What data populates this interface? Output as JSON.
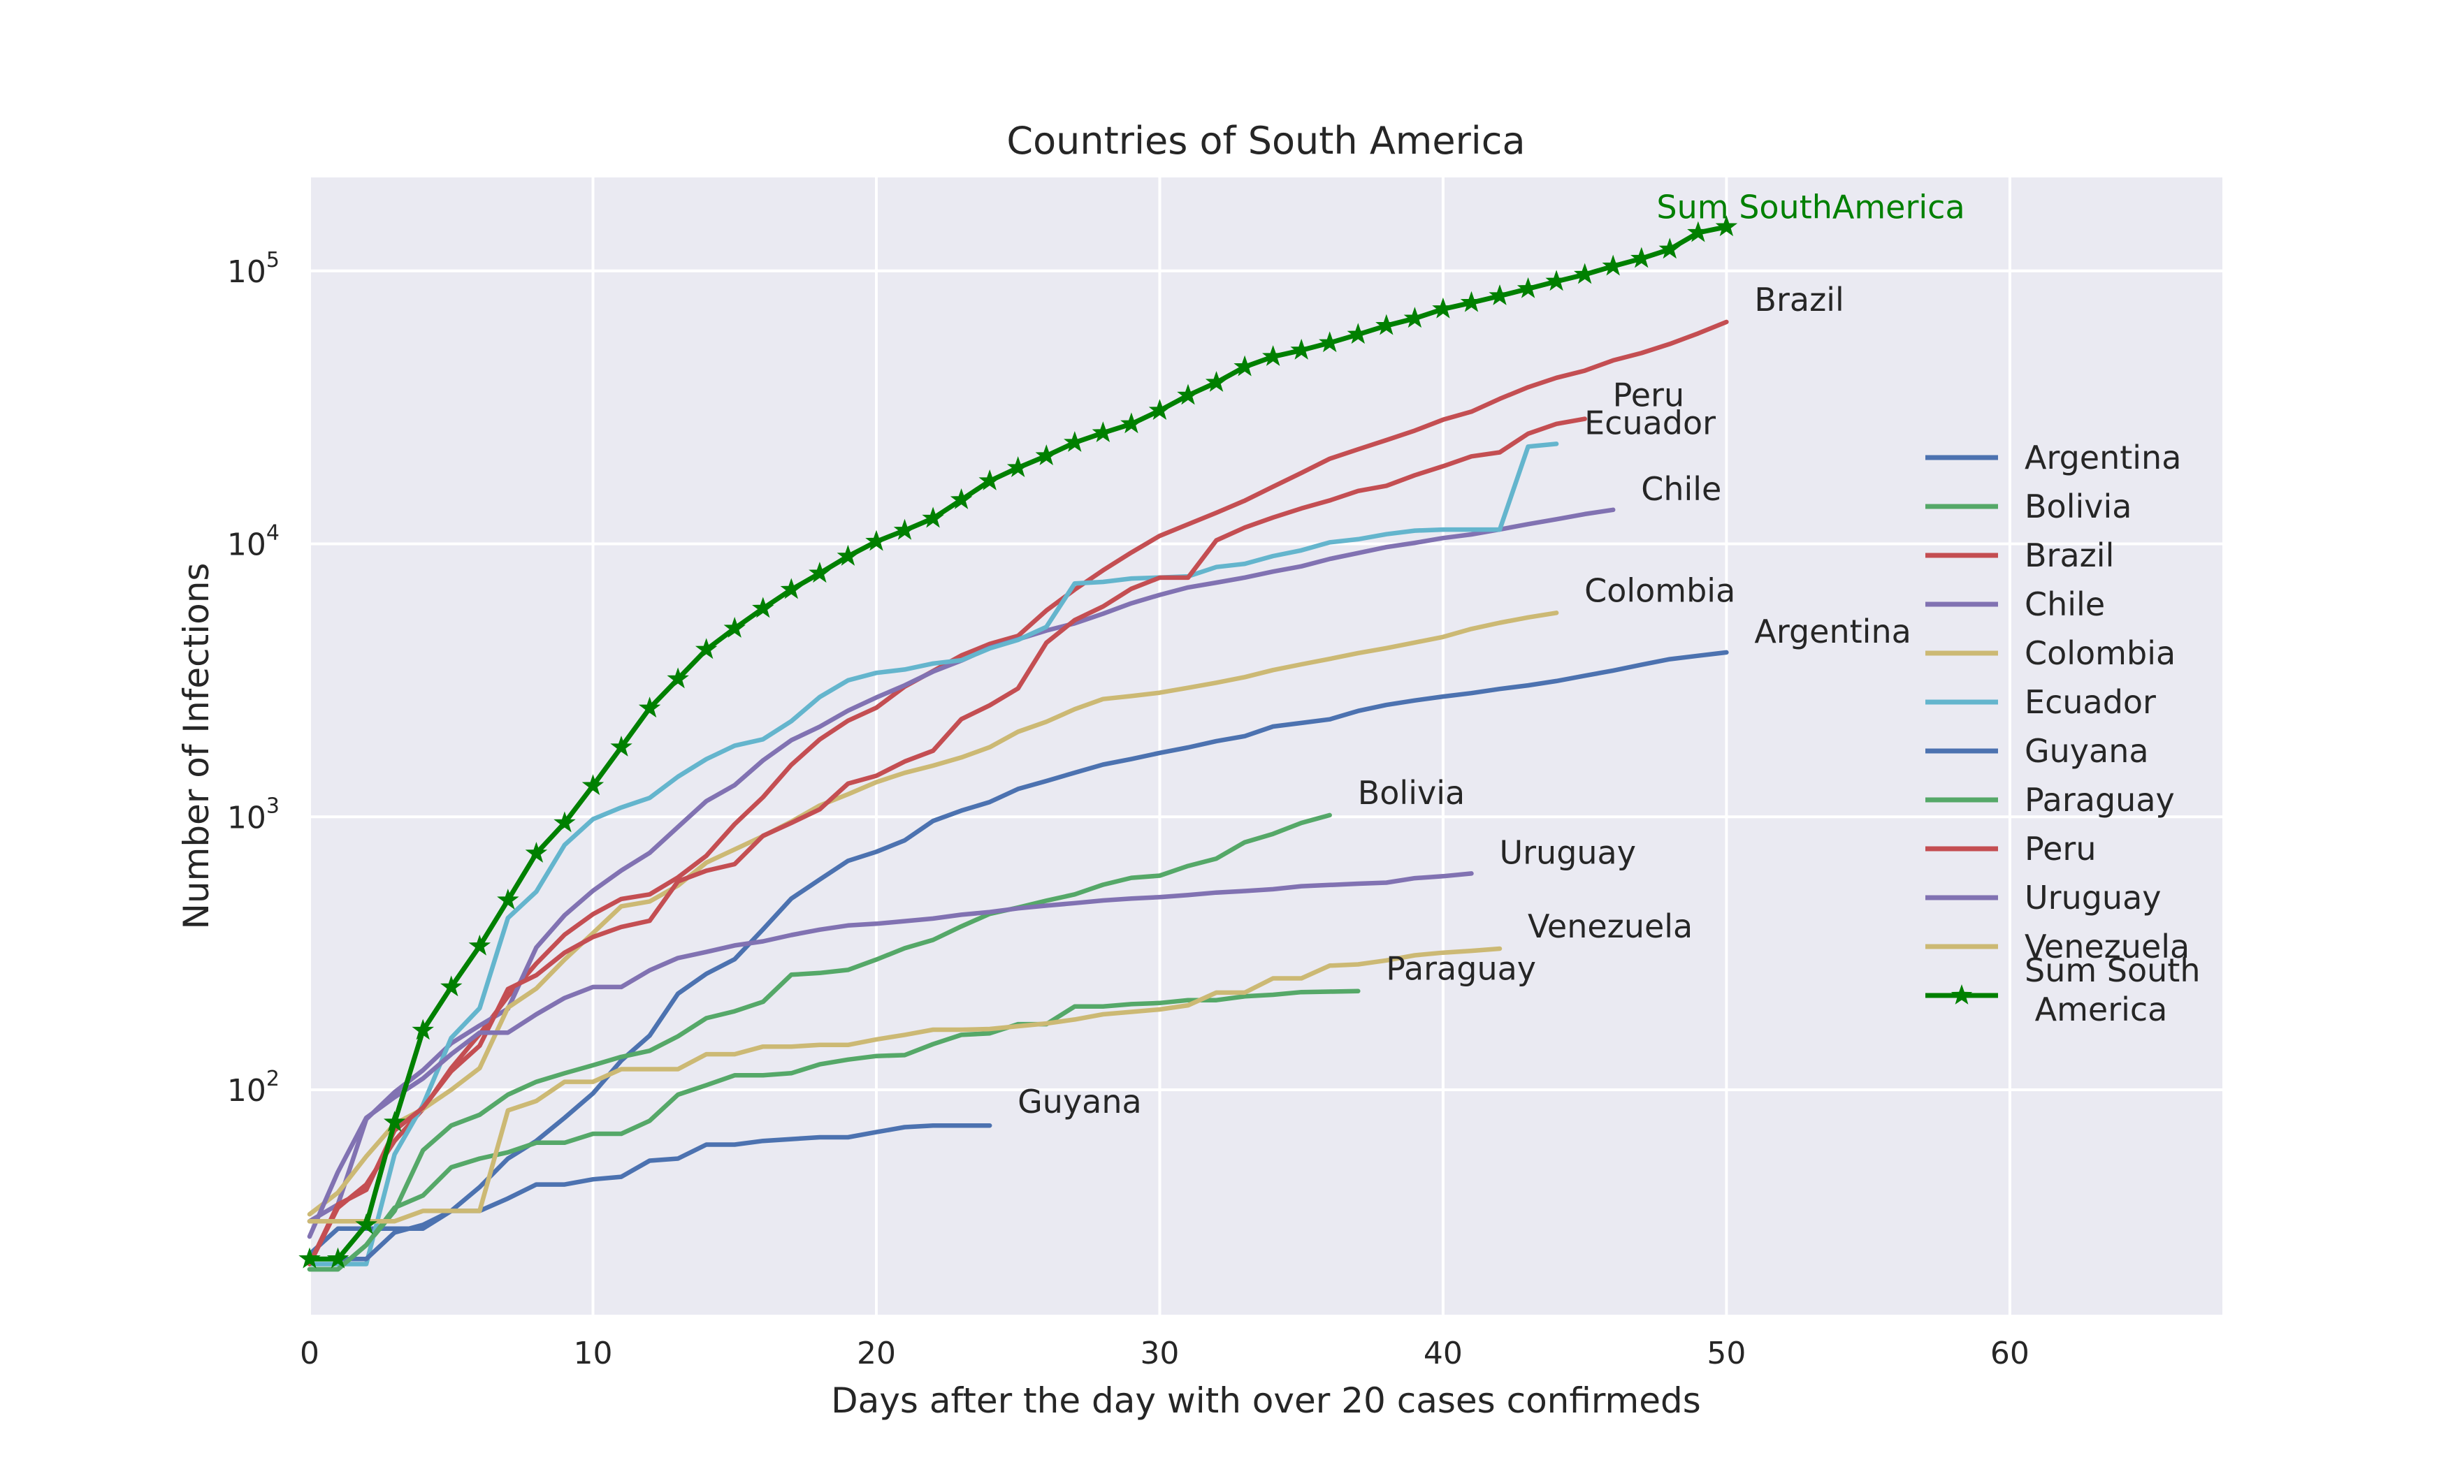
{
  "chart_data": {
    "type": "line",
    "title": "Countries of South America",
    "xlabel": "Days after the day with over 20 cases confirmeds",
    "ylabel": "Number of Infections",
    "yscale": "log",
    "xlim": [
      0,
      67.5
    ],
    "ylim": [
      15,
      220000
    ],
    "x_ticks": [
      0,
      10,
      20,
      30,
      40,
      50,
      60
    ],
    "x_tick_labels": [
      "0",
      "10",
      "20",
      "30",
      "40",
      "50",
      "60"
    ],
    "y_ticks": [
      100,
      1000,
      10000,
      100000
    ],
    "y_tick_labels": [
      {
        "base": "10",
        "exp": "2"
      },
      {
        "base": "10",
        "exp": "3"
      },
      {
        "base": "10",
        "exp": "4"
      },
      {
        "base": "10",
        "exp": "5"
      }
    ],
    "grid": true,
    "background": "#EAEAF2",
    "legend_position": "right",
    "series": [
      {
        "name": "Argentina",
        "color": "#4C72B0",
        "end_label": "Argentina",
        "values": [
          25,
          31,
          31,
          31,
          31,
          36,
          44,
          56,
          65,
          79,
          97,
          128,
          158,
          225,
          266,
          301,
          387,
          502,
          589,
          690,
          745,
          820,
          966,
          1054,
          1133,
          1265,
          1353,
          1451,
          1554,
          1628,
          1715,
          1795,
          1894,
          1975,
          2142,
          2208,
          2277,
          2443,
          2571,
          2669,
          2758,
          2839,
          2941,
          3031,
          3144,
          3288,
          3435,
          3607,
          3780,
          3892,
          4003
        ]
      },
      {
        "name": "Bolivia",
        "color": "#55A868",
        "end_label": "Bolivia",
        "values": [
          22,
          22,
          27,
          36,
          60,
          74,
          81,
          96,
          107,
          115,
          123,
          132,
          139,
          157,
          183,
          194,
          210,
          264,
          268,
          275,
          300,
          330,
          354,
          397,
          441,
          465,
          493,
          520,
          564,
          598,
          609,
          661,
          703,
          807,
          866,
          950,
          1014
        ]
      },
      {
        "name": "Brazil",
        "color": "#C44E52",
        "end_label": "Brazil",
        "values": [
          23,
          37,
          45,
          65,
          85,
          120,
          160,
          220,
          290,
          370,
          440,
          500,
          520,
          600,
          720,
          940,
          1180,
          1550,
          1920,
          2250,
          2510,
          3000,
          3420,
          3900,
          4300,
          4600,
          5700,
          6800,
          8000,
          9300,
          10700,
          11800,
          13000,
          14400,
          16200,
          18200,
          20500,
          22200,
          24000,
          26000,
          28500,
          30500,
          34000,
          37500,
          40600,
          43100,
          47000,
          50000,
          54000,
          59000,
          65000
        ]
      },
      {
        "name": "Chile",
        "color": "#8172B2",
        "end_label": "Chile",
        "values": [
          33,
          38,
          78,
          98,
          118,
          148,
          172,
          198,
          332,
          436,
          536,
          636,
          738,
          918,
          1142,
          1307,
          1610,
          1909,
          2139,
          2449,
          2738,
          3031,
          3404,
          3737,
          4161,
          4471,
          4815,
          5116,
          5546,
          6060,
          6501,
          6927,
          7213,
          7525,
          7917,
          8273,
          8807,
          9252,
          9730,
          10088,
          10507,
          10832,
          11296,
          11812,
          12306,
          12858,
          13331
        ]
      },
      {
        "name": "Colombia",
        "color": "#CCB974",
        "end_label": "Colombia",
        "values": [
          35,
          42,
          57,
          75,
          85,
          100,
          120,
          200,
          235,
          300,
          375,
          470,
          490,
          560,
          680,
          760,
          850,
          960,
          1100,
          1210,
          1340,
          1450,
          1540,
          1650,
          1800,
          2050,
          2230,
          2480,
          2700,
          2770,
          2850,
          2970,
          3100,
          3250,
          3450,
          3620,
          3790,
          3980,
          4150,
          4350,
          4560,
          4880,
          5140,
          5380,
          5590
        ]
      },
      {
        "name": "Ecuador",
        "color": "#64B5CD",
        "end_label": "Ecuador",
        "values": [
          23,
          23,
          23,
          58,
          88,
          155,
          199,
          426,
          532,
          789,
          981,
          1082,
          1173,
          1403,
          1627,
          1823,
          1924,
          2240,
          2748,
          3163,
          3368,
          3465,
          3646,
          3747,
          4140,
          4450,
          4965,
          7161,
          7257,
          7466,
          7529,
          7603,
          8225,
          8450,
          9022,
          9468,
          10128,
          10398,
          10850,
          11183,
          11278,
          11278,
          11278,
          22719,
          23240
        ]
      },
      {
        "name": "Guyana",
        "color": "#4C72B0",
        "end_label": "Guyana",
        "values": [
          24,
          24,
          24,
          30,
          32,
          36,
          36,
          40,
          45,
          45,
          47,
          48,
          55,
          56,
          63,
          63,
          65,
          66,
          67,
          67,
          70,
          73,
          74,
          74,
          74
        ]
      },
      {
        "name": "Paraguay",
        "color": "#55A868",
        "end_label": "Paraguay",
        "values": [
          22,
          22,
          27,
          37,
          41,
          52,
          56,
          59,
          64,
          64,
          69,
          69,
          77,
          96,
          104,
          113,
          113,
          115,
          124,
          129,
          133,
          134,
          147,
          159,
          161,
          174,
          174,
          202,
          202,
          206,
          208,
          213,
          213,
          220,
          223,
          228,
          229,
          230
        ]
      },
      {
        "name": "Peru",
        "color": "#C44E52",
        "end_label": "Peru",
        "values": [
          23,
          38,
          43,
          71,
          86,
          117,
          145,
          234,
          263,
          318,
          363,
          395,
          416,
          580,
          635,
          671,
          852,
          950,
          1065,
          1323,
          1414,
          1595,
          1746,
          2281,
          2561,
          2954,
          4342,
          5256,
          5897,
          6848,
          7519,
          7519,
          10303,
          11475,
          12491,
          13489,
          14420,
          15628,
          16325,
          17837,
          19250,
          20914,
          21648,
          25331,
          27517,
          28699
        ]
      },
      {
        "name": "Uruguay",
        "color": "#8172B2",
        "end_label": "Uruguay",
        "values": [
          29,
          50,
          79,
          94,
          110,
          135,
          162,
          162,
          189,
          217,
          238,
          238,
          274,
          304,
          320,
          338,
          350,
          369,
          386,
          400,
          406,
          415,
          424,
          438,
          448,
          462,
          473,
          483,
          494,
          502,
          508,
          517,
          528,
          535,
          543,
          557,
          563,
          569,
          574,
          596,
          606,
          620
        ]
      },
      {
        "name": "Venezuela",
        "color": "#CCB974",
        "end_label": "Venezuela",
        "values": [
          33,
          33,
          33,
          33,
          36,
          36,
          36,
          84,
          91,
          107,
          107,
          119,
          119,
          119,
          135,
          135,
          144,
          144,
          146,
          146,
          153,
          159,
          166,
          166,
          167,
          171,
          175,
          181,
          189,
          193,
          197,
          204,
          227,
          227,
          256,
          256,
          285,
          288,
          298,
          311,
          318,
          323,
          329
        ]
      },
      {
        "name": "Sum South\n America",
        "color": "#008000",
        "end_label": "Sum SouthAmerica",
        "marker": "star",
        "values": [
          24,
          24,
          32,
          76,
          165,
          238,
          336,
          495,
          735,
          950,
          1300,
          1800,
          2500,
          3200,
          4100,
          4900,
          5800,
          6800,
          7800,
          9000,
          10200,
          11200,
          12400,
          14500,
          17000,
          19000,
          21000,
          23500,
          25500,
          27500,
          30800,
          35000,
          39000,
          44500,
          48500,
          51200,
          54500,
          58500,
          63000,
          67000,
          72500,
          76500,
          81000,
          86000,
          91500,
          97000,
          104000,
          111000,
          120000,
          138000,
          145000
        ]
      }
    ]
  }
}
